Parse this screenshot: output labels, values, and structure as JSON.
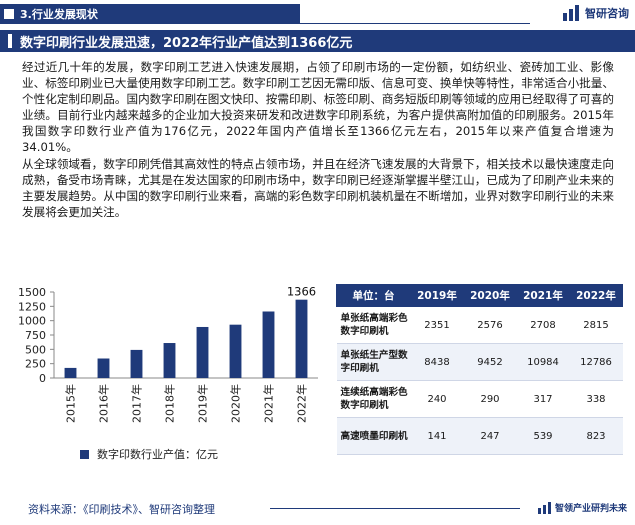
{
  "section": {
    "label": "3.行业发展现状"
  },
  "brand": {
    "name": "智研咨询"
  },
  "headline": "数字印刷行业发展迅速，2022年行业产值达到1366亿元",
  "paragraphs": [
    "经过近几十年的发展，数字印刷工艺进入快速发展期，占领了印刷市场的一定份额，如纺织业、瓷砖加工业、影像业、标签印刷业已大量使用数字印刷工艺。数字印刷工艺因无需印版、信息可变、换单快等特性，非常适合小批量、个性化定制印刷品。国内数字印刷在图文快印、按需印刷、标签印刷、商务短版印刷等领域的应用已经取得了可喜的业绩。目前行业内越来越多的企业加大投资来研发和改进数字印刷系统，为客户提供高附加值的印刷服务。2015年我国数字印数行业产值为176亿元，2022年国内产值增长至1366亿元左右，2015年以来产值复合增速为34.01%。",
    "从全球领域看，数字印刷凭借其高效性的特点占领市场，并且在经济飞速发展的大背景下，相关技术以最快速度走向成熟，备受市场青睐，尤其是在发达国家的印刷市场中，数字印刷已经逐渐掌握半壁江山，已成为了印刷产业未来的主要发展趋势。从中国的数字印刷行业来看，高端的彩色数字印刷机装机量在不断增加，业界对数字印刷行业的未来发展将会更加关注。"
  ],
  "chart_data": {
    "type": "bar",
    "categories": [
      "2015年",
      "2016年",
      "2017年",
      "2018年",
      "2019年",
      "2020年",
      "2021年",
      "2022年"
    ],
    "series": [
      {
        "name": "数字印数行业产值：亿元",
        "values": [
          176,
          340,
          490,
          610,
          890,
          930,
          1160,
          1366
        ]
      }
    ],
    "ylim": [
      0,
      1500
    ],
    "yticks": [
      0,
      250,
      500,
      750,
      1000,
      1250,
      1500
    ],
    "data_labels": [
      {
        "index": 7,
        "text": "1366"
      }
    ],
    "color": "#1f3a7a",
    "grid": false,
    "legend": "bottom"
  },
  "table": {
    "headers": [
      "单位：台",
      "2019年",
      "2020年",
      "2021年",
      "2022年"
    ],
    "rows": [
      {
        "label": "单张纸高端彩色数字印刷机",
        "values": [
          "2351",
          "2576",
          "2708",
          "2815"
        ]
      },
      {
        "label": "单张纸生产型数字印刷机",
        "values": [
          "8438",
          "9452",
          "10984",
          "12786"
        ]
      },
      {
        "label": "连续纸高端彩色数字印刷机",
        "values": [
          "240",
          "290",
          "317",
          "338"
        ]
      },
      {
        "label": "高速喷墨印刷机",
        "values": [
          "141",
          "247",
          "539",
          "823"
        ]
      }
    ]
  },
  "footer": {
    "source": "资料来源：《印刷技术》、智研咨询整理",
    "brand": "智领产业研判未来"
  },
  "colors": {
    "primary": "#1f3a7a",
    "row_alt": "#eef2f9"
  }
}
